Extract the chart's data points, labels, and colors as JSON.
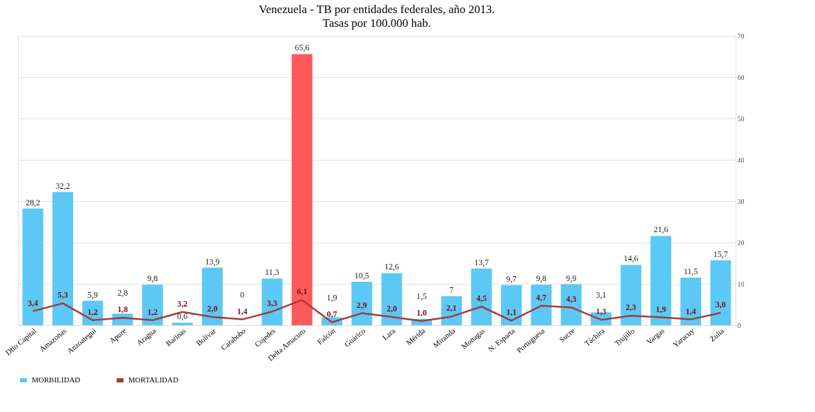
{
  "chart_data": {
    "type": "bar",
    "title": "Venezuela - TB por entidades federales, año 2013.",
    "subtitle": "Tasas por 100.000 hab.",
    "categories": [
      "Dtto Capital",
      "Amazonas",
      "Anzoategui",
      "Apure",
      "Aragua",
      "Barinas",
      "Bolívar",
      "Carabobo",
      "Cojedes",
      "Delta Amacuro",
      "Falcón",
      "Guárico",
      "Lara",
      "Mérida",
      "Miranda",
      "Monagas",
      "N. Esparta",
      "Portuguesa",
      "Sucre",
      "Táchira",
      "Trujillo",
      "Vargas",
      "Yaracuy",
      "Zulia"
    ],
    "series": [
      {
        "name": "MORBILIDAD",
        "color": "#5bc8f5",
        "colors": [
          "#5bc8f5",
          "#5bc8f5",
          "#5bc8f5",
          "#5bc8f5",
          "#5bc8f5",
          "#5bc8f5",
          "#5bc8f5",
          "#5bc8f5",
          "#5bc8f5",
          "#ff5a5a",
          "#5bc8f5",
          "#5bc8f5",
          "#5bc8f5",
          "#5bc8f5",
          "#5bc8f5",
          "#5bc8f5",
          "#5bc8f5",
          "#5bc8f5",
          "#5bc8f5",
          "#5bc8f5",
          "#5bc8f5",
          "#5bc8f5",
          "#5bc8f5",
          "#5bc8f5"
        ],
        "values": [
          28.2,
          32.2,
          5.9,
          2.8,
          9.8,
          0.6,
          13.9,
          0,
          11.3,
          65.6,
          1.9,
          10.5,
          12.6,
          1.5,
          7,
          13.7,
          9.7,
          9.8,
          9.9,
          3.1,
          14.6,
          21.6,
          11.5,
          15.7
        ],
        "value_labels": [
          "28,2",
          "32,2",
          "5,9",
          "2,8",
          "9,8",
          "0,6",
          "13,9",
          "0",
          "11,3",
          "65,6",
          "1,9",
          "10,5",
          "12,6",
          "1,5",
          "7",
          "13,7",
          "9,7",
          "9,8",
          "9,9",
          "3,1",
          "14,6",
          "21,6",
          "11,5",
          "15,7"
        ]
      },
      {
        "name": "MORTALIDAD",
        "type": "line",
        "color": "#a33b3b",
        "values": [
          3.4,
          5.3,
          1.2,
          1.8,
          1.2,
          3.2,
          2.0,
          1.4,
          3.3,
          6.1,
          0.7,
          2.9,
          2.0,
          1.0,
          2.1,
          4.5,
          1.1,
          4.7,
          4.3,
          1.3,
          2.3,
          1.9,
          1.4,
          3.0
        ],
        "value_labels": [
          "3,4",
          "5,3",
          "1,2",
          "1,8",
          "1,2",
          "3,2",
          "2,0",
          "1,4",
          "3,3",
          "6,1",
          "0,7",
          "2,9",
          "2,0",
          "1,0",
          "2,1",
          "4,5",
          "1,1",
          "4,7",
          "4,3",
          "1,3",
          "2,3",
          "1,9",
          "1,4",
          "3,0"
        ]
      }
    ],
    "ylim": [
      0,
      70
    ],
    "yticks": [
      0,
      10,
      20,
      30,
      40,
      50,
      60,
      70
    ],
    "grid": "y",
    "legend": "bottom",
    "marker": "none",
    "line_style": "solid"
  }
}
